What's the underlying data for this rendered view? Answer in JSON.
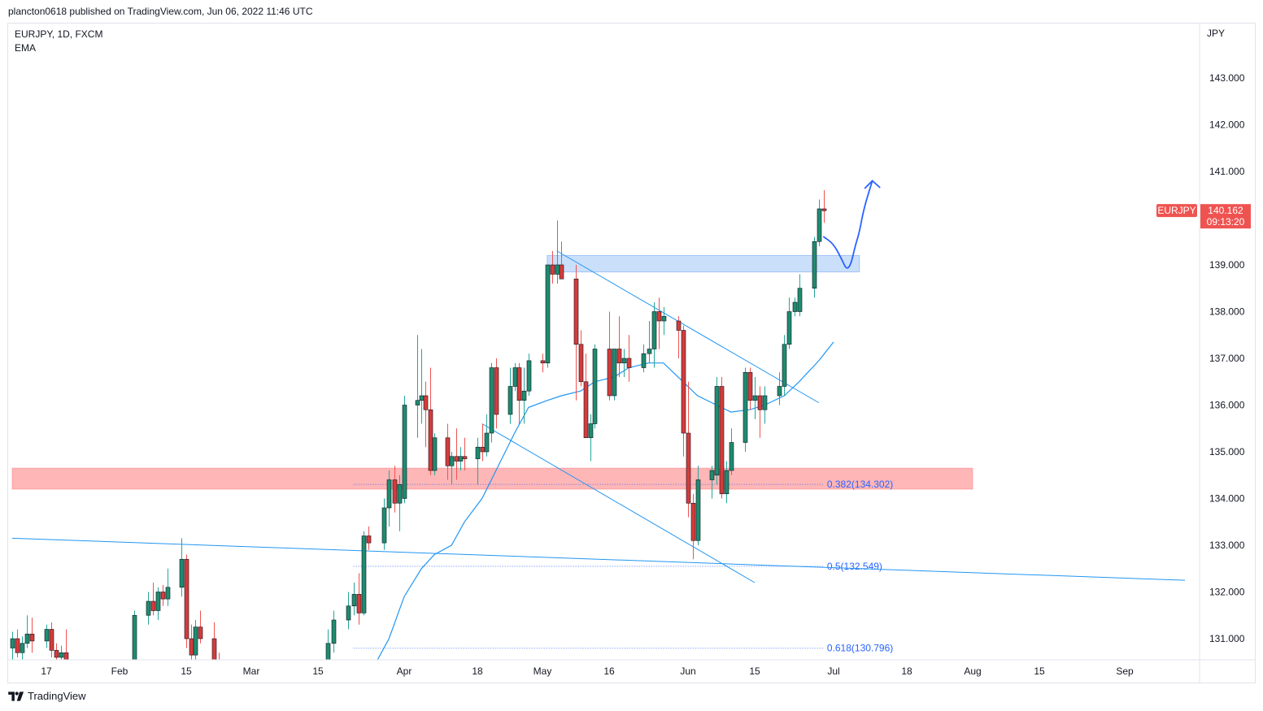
{
  "header": {
    "publish_text": "plancton0618 published on TradingView.com, Jun 06, 2022 11:46 UTC"
  },
  "legend": {
    "symbol": "EURJPY, 1D, FXCM",
    "indicator": "EMA"
  },
  "price_scale": {
    "currency": "JPY"
  },
  "price_badge": {
    "symbol": "EURJPY",
    "price": "140.162",
    "countdown": "09:13:20",
    "color": "#ef5350"
  },
  "footer": {
    "brand": "TradingView"
  },
  "colors": {
    "up": "#26a69a",
    "up_body": "#1e8c6f",
    "down": "#ef5350",
    "down_body": "#d53b3b",
    "drawing": "#2196f3",
    "fib": "#2962ff",
    "support_zone": "#ff9e9e",
    "resistance_zone": "#9ec5f4"
  },
  "chart_data": {
    "type": "candlestick",
    "symbol": "EURJPY",
    "timeframe": "1D",
    "x_tick_labels": [
      "17",
      "Feb",
      "15",
      "Mar",
      "15",
      "Apr",
      "18",
      "May",
      "16",
      "Jun",
      "15",
      "Jul",
      "18",
      "Aug",
      "15",
      "Sep"
    ],
    "x_tick_dates": [
      "2022-01-17",
      "2022-02-01",
      "2022-02-15",
      "2022-03-01",
      "2022-03-15",
      "2022-04-01",
      "2022-04-18",
      "2022-05-02",
      "2022-05-16",
      "2022-06-01",
      "2022-06-15",
      "2022-07-01",
      "2022-07-18",
      "2022-08-01",
      "2022-08-15",
      "2022-09-01"
    ],
    "y_tick_labels": [
      "143.000",
      "142.000",
      "141.000",
      "139.000",
      "138.000",
      "137.000",
      "136.000",
      "135.000",
      "134.000",
      "133.000",
      "132.000",
      "131.000"
    ],
    "y_range": [
      130.6,
      144.2
    ],
    "x_range": [
      "2022-01-10",
      "2022-09-16"
    ],
    "candles": [
      {
        "d": "2022-01-10",
        "o": 130.8,
        "h": 131.15,
        "l": 130.5,
        "c": 131.0
      },
      {
        "d": "2022-01-11",
        "o": 131.0,
        "h": 131.2,
        "l": 130.6,
        "c": 130.7
      },
      {
        "d": "2022-01-12",
        "o": 130.7,
        "h": 131.05,
        "l": 130.5,
        "c": 130.9
      },
      {
        "d": "2022-01-13",
        "o": 130.9,
        "h": 131.5,
        "l": 130.8,
        "c": 131.1
      },
      {
        "d": "2022-01-14",
        "o": 131.1,
        "h": 131.45,
        "l": 130.7,
        "c": 130.95
      },
      {
        "d": "2022-01-17",
        "o": 130.95,
        "h": 131.3,
        "l": 130.8,
        "c": 131.2
      },
      {
        "d": "2022-01-18",
        "o": 131.2,
        "h": 131.35,
        "l": 130.6,
        "c": 130.75
      },
      {
        "d": "2022-01-19",
        "o": 130.75,
        "h": 130.9,
        "l": 130.4,
        "c": 130.6
      },
      {
        "d": "2022-01-20",
        "o": 130.6,
        "h": 130.85,
        "l": 130.3,
        "c": 130.7
      },
      {
        "d": "2022-01-21",
        "o": 130.7,
        "h": 131.2,
        "l": 130.4,
        "c": 130.55
      },
      {
        "d": "2022-02-04",
        "o": 130.5,
        "h": 131.6,
        "l": 130.4,
        "c": 131.5
      },
      {
        "d": "2022-02-07",
        "o": 131.5,
        "h": 132.0,
        "l": 131.3,
        "c": 131.8
      },
      {
        "d": "2022-02-08",
        "o": 131.8,
        "h": 132.2,
        "l": 131.5,
        "c": 131.6
      },
      {
        "d": "2022-02-09",
        "o": 131.6,
        "h": 132.1,
        "l": 131.4,
        "c": 132.0
      },
      {
        "d": "2022-02-10",
        "o": 132.0,
        "h": 132.15,
        "l": 131.7,
        "c": 131.85
      },
      {
        "d": "2022-02-11",
        "o": 131.85,
        "h": 132.5,
        "l": 131.7,
        "c": 132.1
      },
      {
        "d": "2022-02-14",
        "o": 132.1,
        "h": 133.15,
        "l": 131.9,
        "c": 132.7
      },
      {
        "d": "2022-02-15",
        "o": 132.7,
        "h": 132.8,
        "l": 130.8,
        "c": 131.0
      },
      {
        "d": "2022-02-16",
        "o": 131.0,
        "h": 131.3,
        "l": 130.4,
        "c": 130.65
      },
      {
        "d": "2022-02-17",
        "o": 130.65,
        "h": 131.4,
        "l": 130.2,
        "c": 131.25
      },
      {
        "d": "2022-02-18",
        "o": 131.25,
        "h": 131.6,
        "l": 130.9,
        "c": 131.0
      },
      {
        "d": "2022-02-21",
        "o": 131.0,
        "h": 131.35,
        "l": 130.2,
        "c": 130.4
      },
      {
        "d": "2022-02-22",
        "o": 130.4,
        "h": 130.7,
        "l": 130.0,
        "c": 130.2
      },
      {
        "d": "2022-02-23",
        "o": 130.2,
        "h": 130.55,
        "l": 129.9,
        "c": 130.3
      },
      {
        "d": "2022-03-17",
        "o": 130.5,
        "h": 131.2,
        "l": 130.3,
        "c": 130.9
      },
      {
        "d": "2022-03-18",
        "o": 130.9,
        "h": 131.6,
        "l": 130.7,
        "c": 131.4
      },
      {
        "d": "2022-03-21",
        "o": 131.4,
        "h": 132.0,
        "l": 131.2,
        "c": 131.7
      },
      {
        "d": "2022-03-22",
        "o": 131.7,
        "h": 132.2,
        "l": 131.5,
        "c": 131.95
      },
      {
        "d": "2022-03-23",
        "o": 131.95,
        "h": 132.4,
        "l": 131.3,
        "c": 131.55
      },
      {
        "d": "2022-03-24",
        "o": 131.55,
        "h": 133.3,
        "l": 131.5,
        "c": 133.2
      },
      {
        "d": "2022-03-25",
        "o": 133.2,
        "h": 133.4,
        "l": 132.9,
        "c": 133.05
      },
      {
        "d": "2022-03-28",
        "o": 133.05,
        "h": 134.0,
        "l": 132.9,
        "c": 133.8
      },
      {
        "d": "2022-03-29",
        "o": 133.8,
        "h": 134.6,
        "l": 133.4,
        "c": 134.4
      },
      {
        "d": "2022-03-30",
        "o": 134.4,
        "h": 134.7,
        "l": 133.7,
        "c": 133.9
      },
      {
        "d": "2022-03-31",
        "o": 133.9,
        "h": 134.5,
        "l": 133.3,
        "c": 134.3
      },
      {
        "d": "2022-04-01",
        "o": 134.0,
        "h": 136.2,
        "l": 133.9,
        "c": 136.0
      },
      {
        "d": "2022-04-04",
        "o": 136.0,
        "h": 137.5,
        "l": 135.3,
        "c": 136.1
      },
      {
        "d": "2022-04-05",
        "o": 136.1,
        "h": 137.2,
        "l": 135.6,
        "c": 136.2
      },
      {
        "d": "2022-04-06",
        "o": 136.2,
        "h": 136.5,
        "l": 135.1,
        "c": 135.9
      },
      {
        "d": "2022-04-07",
        "o": 135.9,
        "h": 136.8,
        "l": 134.5,
        "c": 134.6
      },
      {
        "d": "2022-04-08",
        "o": 134.6,
        "h": 135.4,
        "l": 134.5,
        "c": 135.3
      },
      {
        "d": "2022-04-11",
        "o": 135.3,
        "h": 135.6,
        "l": 134.4,
        "c": 134.7
      },
      {
        "d": "2022-04-12",
        "o": 134.7,
        "h": 135.0,
        "l": 134.3,
        "c": 134.9
      },
      {
        "d": "2022-04-13",
        "o": 134.9,
        "h": 135.5,
        "l": 134.4,
        "c": 134.8
      },
      {
        "d": "2022-04-14",
        "o": 134.8,
        "h": 135.1,
        "l": 134.6,
        "c": 134.9
      },
      {
        "d": "2022-04-15",
        "o": 134.9,
        "h": 135.3,
        "l": 134.6,
        "c": 134.85
      },
      {
        "d": "2022-04-18",
        "o": 134.85,
        "h": 135.3,
        "l": 134.3,
        "c": 135.1
      },
      {
        "d": "2022-04-19",
        "o": 135.1,
        "h": 135.6,
        "l": 134.8,
        "c": 135.0
      },
      {
        "d": "2022-04-20",
        "o": 135.0,
        "h": 135.8,
        "l": 134.9,
        "c": 135.4
      },
      {
        "d": "2022-04-21",
        "o": 135.4,
        "h": 136.9,
        "l": 135.2,
        "c": 136.8
      },
      {
        "d": "2022-04-22",
        "o": 136.8,
        "h": 137.0,
        "l": 135.5,
        "c": 135.8
      },
      {
        "d": "2022-04-25",
        "o": 135.8,
        "h": 136.8,
        "l": 135.6,
        "c": 136.4
      },
      {
        "d": "2022-04-26",
        "o": 136.4,
        "h": 136.9,
        "l": 136.3,
        "c": 136.8
      },
      {
        "d": "2022-04-27",
        "o": 136.8,
        "h": 136.9,
        "l": 135.6,
        "c": 136.1
      },
      {
        "d": "2022-04-28",
        "o": 136.1,
        "h": 136.8,
        "l": 135.6,
        "c": 136.3
      },
      {
        "d": "2022-04-29",
        "o": 136.3,
        "h": 137.1,
        "l": 136.2,
        "c": 136.95
      },
      {
        "d": "2022-05-02",
        "o": 136.95,
        "h": 137.1,
        "l": 136.7,
        "c": 136.9
      },
      {
        "d": "2022-05-03",
        "o": 136.9,
        "h": 138.9,
        "l": 136.8,
        "c": 139.0
      },
      {
        "d": "2022-05-04",
        "o": 139.0,
        "h": 139.3,
        "l": 138.6,
        "c": 138.8
      },
      {
        "d": "2022-05-05",
        "o": 138.8,
        "h": 139.95,
        "l": 138.6,
        "c": 139.0
      },
      {
        "d": "2022-05-06",
        "o": 139.0,
        "h": 139.5,
        "l": 138.7,
        "c": 138.7
      },
      {
        "d": "2022-05-09",
        "o": 138.7,
        "h": 139.0,
        "l": 136.1,
        "c": 137.3
      },
      {
        "d": "2022-05-10",
        "o": 137.3,
        "h": 137.6,
        "l": 136.4,
        "c": 136.5
      },
      {
        "d": "2022-05-11",
        "o": 136.5,
        "h": 137.1,
        "l": 135.3,
        "c": 135.3
      },
      {
        "d": "2022-05-12",
        "o": 135.3,
        "h": 135.8,
        "l": 134.8,
        "c": 135.6
      },
      {
        "d": "2022-05-13",
        "o": 135.6,
        "h": 137.3,
        "l": 135.5,
        "c": 137.2
      },
      {
        "d": "2022-05-16",
        "o": 137.2,
        "h": 138.0,
        "l": 136.1,
        "c": 136.2
      },
      {
        "d": "2022-05-17",
        "o": 136.2,
        "h": 137.2,
        "l": 136.1,
        "c": 137.2
      },
      {
        "d": "2022-05-18",
        "o": 137.2,
        "h": 137.9,
        "l": 136.6,
        "c": 136.9
      },
      {
        "d": "2022-05-19",
        "o": 136.9,
        "h": 137.2,
        "l": 136.6,
        "c": 137.0
      },
      {
        "d": "2022-05-20",
        "o": 137.0,
        "h": 137.5,
        "l": 136.5,
        "c": 136.8
      },
      {
        "d": "2022-05-23",
        "o": 136.8,
        "h": 137.3,
        "l": 136.7,
        "c": 137.1
      },
      {
        "d": "2022-05-24",
        "o": 137.1,
        "h": 137.8,
        "l": 136.9,
        "c": 137.2
      },
      {
        "d": "2022-05-25",
        "o": 137.2,
        "h": 138.2,
        "l": 136.8,
        "c": 138.0
      },
      {
        "d": "2022-05-26",
        "o": 138.0,
        "h": 138.3,
        "l": 137.2,
        "c": 137.8
      },
      {
        "d": "2022-05-27",
        "o": 137.8,
        "h": 138.1,
        "l": 137.5,
        "c": 137.9
      },
      {
        "d": "2022-05-30",
        "o": 137.8,
        "h": 137.9,
        "l": 137.0,
        "c": 137.6
      },
      {
        "d": "2022-05-31",
        "o": 137.6,
        "h": 137.7,
        "l": 134.9,
        "c": 135.4
      },
      {
        "d": "2022-06-01",
        "o": 135.4,
        "h": 136.5,
        "l": 133.6,
        "c": 133.9
      },
      {
        "d": "2022-06-02",
        "o": 133.9,
        "h": 134.1,
        "l": 132.7,
        "c": 133.1
      },
      {
        "d": "2022-06-03",
        "o": 133.1,
        "h": 134.7,
        "l": 133.0,
        "c": 134.4
      },
      {
        "d": "2022-06-06",
        "o": 134.4,
        "h": 134.7,
        "l": 134.0,
        "c": 134.6
      },
      {
        "d": "2022-06-07",
        "o": 134.5,
        "h": 136.6,
        "l": 134.3,
        "c": 136.4
      },
      {
        "d": "2022-06-08",
        "o": 136.4,
        "h": 136.6,
        "l": 134.0,
        "c": 134.1
      },
      {
        "d": "2022-06-09",
        "o": 134.1,
        "h": 134.8,
        "l": 133.9,
        "c": 134.6
      },
      {
        "d": "2022-06-10",
        "o": 134.6,
        "h": 135.5,
        "l": 134.5,
        "c": 135.2
      },
      {
        "d": "2022-06-13",
        "o": 135.2,
        "h": 136.8,
        "l": 135.0,
        "c": 136.7
      },
      {
        "d": "2022-06-14",
        "o": 136.7,
        "h": 136.8,
        "l": 135.9,
        "c": 136.1
      },
      {
        "d": "2022-06-15",
        "o": 136.1,
        "h": 136.6,
        "l": 135.7,
        "c": 136.2
      },
      {
        "d": "2022-06-16",
        "o": 136.2,
        "h": 136.4,
        "l": 135.3,
        "c": 135.9
      },
      {
        "d": "2022-06-17",
        "o": 135.9,
        "h": 136.4,
        "l": 135.6,
        "c": 136.2
      },
      {
        "d": "2022-06-20",
        "o": 136.2,
        "h": 136.7,
        "l": 136.0,
        "c": 136.4
      },
      {
        "d": "2022-06-21",
        "o": 136.4,
        "h": 137.5,
        "l": 136.2,
        "c": 137.3
      },
      {
        "d": "2022-06-22",
        "o": 137.3,
        "h": 138.3,
        "l": 137.2,
        "c": 138.0
      },
      {
        "d": "2022-06-23",
        "o": 138.0,
        "h": 138.3,
        "l": 137.9,
        "c": 138.2
      },
      {
        "d": "2022-06-24",
        "o": 138.0,
        "h": 138.8,
        "l": 137.9,
        "c": 138.5
      },
      {
        "d": "2022-06-27",
        "o": 138.5,
        "h": 139.6,
        "l": 138.3,
        "c": 139.5
      },
      {
        "d": "2022-06-28",
        "o": 139.5,
        "h": 140.4,
        "l": 139.4,
        "c": 140.2
      },
      {
        "d": "2022-06-29",
        "o": 140.2,
        "h": 140.6,
        "l": 139.9,
        "c": 140.16
      }
    ],
    "ema": [
      {
        "d": "2022-03-25",
        "v": 130.2
      },
      {
        "d": "2022-03-29",
        "v": 131.0
      },
      {
        "d": "2022-04-01",
        "v": 131.9
      },
      {
        "d": "2022-04-05",
        "v": 132.5
      },
      {
        "d": "2022-04-08",
        "v": 132.8
      },
      {
        "d": "2022-04-12",
        "v": 133.0
      },
      {
        "d": "2022-04-15",
        "v": 133.5
      },
      {
        "d": "2022-04-19",
        "v": 134.0
      },
      {
        "d": "2022-04-22",
        "v": 134.6
      },
      {
        "d": "2022-04-26",
        "v": 135.4
      },
      {
        "d": "2022-04-29",
        "v": 135.95
      },
      {
        "d": "2022-05-03",
        "v": 136.1
      },
      {
        "d": "2022-05-06",
        "v": 136.2
      },
      {
        "d": "2022-05-10",
        "v": 136.3
      },
      {
        "d": "2022-05-13",
        "v": 136.5
      },
      {
        "d": "2022-05-17",
        "v": 136.6
      },
      {
        "d": "2022-05-20",
        "v": 136.8
      },
      {
        "d": "2022-05-24",
        "v": 136.9
      },
      {
        "d": "2022-05-27",
        "v": 136.9
      },
      {
        "d": "2022-05-31",
        "v": 136.5
      },
      {
        "d": "2022-06-03",
        "v": 136.2
      },
      {
        "d": "2022-06-07",
        "v": 136.0
      },
      {
        "d": "2022-06-10",
        "v": 135.85
      },
      {
        "d": "2022-06-14",
        "v": 135.9
      },
      {
        "d": "2022-06-17",
        "v": 136.0
      },
      {
        "d": "2022-06-21",
        "v": 136.2
      },
      {
        "d": "2022-06-24",
        "v": 136.5
      },
      {
        "d": "2022-06-28",
        "v": 136.95
      },
      {
        "d": "2022-07-01",
        "v": 137.35
      }
    ],
    "zones": [
      {
        "kind": "support",
        "from": "2022-01-10",
        "to": "2022-08-01",
        "low": 134.2,
        "high": 134.65
      },
      {
        "kind": "resistance",
        "from": "2022-05-03",
        "to": "2022-07-07",
        "low": 138.85,
        "high": 139.2
      }
    ],
    "fib_levels": [
      {
        "label": "0.382(134.302)",
        "value": 134.302
      },
      {
        "label": "0.5(132.549)",
        "value": 132.549
      },
      {
        "label": "0.618(130.796)",
        "value": 130.796
      }
    ],
    "fib_span": [
      "2022-03-22",
      "2022-06-29"
    ],
    "trend_lines": [
      {
        "name": "long-trendline",
        "points": [
          [
            "2022-01-10",
            133.15
          ],
          [
            "2022-09-13",
            132.25
          ]
        ]
      },
      {
        "name": "wedge-upper",
        "points": [
          [
            "2022-05-05",
            139.3
          ],
          [
            "2022-06-28",
            136.05
          ]
        ]
      },
      {
        "name": "wedge-lower",
        "points": [
          [
            "2022-04-19",
            135.6
          ],
          [
            "2022-06-15",
            132.2
          ]
        ]
      }
    ],
    "projection_path": [
      [
        "2022-06-29",
        139.6
      ],
      [
        "2022-07-01",
        139.45
      ],
      [
        "2022-07-03",
        139.1
      ],
      [
        "2022-07-04",
        138.9
      ],
      [
        "2022-07-05",
        139.0
      ],
      [
        "2022-07-06",
        139.4
      ],
      [
        "2022-07-07",
        139.7
      ],
      [
        "2022-07-08",
        140.2
      ],
      [
        "2022-07-10",
        140.8
      ]
    ]
  }
}
